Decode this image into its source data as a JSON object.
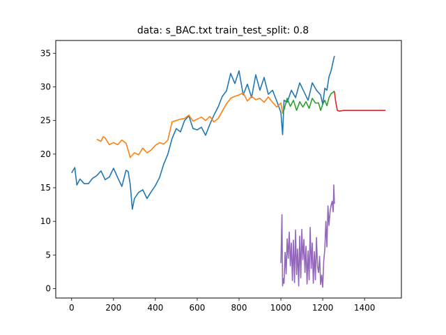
{
  "chart_data": {
    "type": "line",
    "title": "data: s_BAC.txt train_test_split: 0.8",
    "xlabel": "",
    "ylabel": "",
    "xlim": [
      -76,
      1576
    ],
    "ylim": [
      -1.4,
      36.9
    ],
    "x_ticks": [
      0,
      200,
      400,
      600,
      800,
      1000,
      1200,
      1400
    ],
    "y_ticks": [
      0,
      5,
      10,
      15,
      20,
      25,
      30,
      35
    ],
    "grid": false,
    "legend": "none",
    "series": [
      {
        "color": "#1f77b4",
        "x": [
          0,
          15,
          25,
          40,
          60,
          80,
          100,
          120,
          140,
          160,
          180,
          200,
          220,
          240,
          260,
          270,
          280,
          290,
          300,
          320,
          340,
          360,
          380,
          400,
          420,
          440,
          460,
          480,
          500,
          520,
          540,
          560,
          580,
          600,
          620,
          640,
          660,
          680,
          700,
          720,
          740,
          760,
          780,
          800,
          820,
          840,
          860,
          880,
          900,
          920,
          940,
          960,
          980,
          1000,
          1008,
          1015,
          1030,
          1050,
          1070,
          1090,
          1110,
          1130,
          1150,
          1170,
          1190,
          1200,
          1210,
          1220,
          1230,
          1240,
          1250,
          1256
        ],
        "y": [
          17.2,
          18.0,
          15.4,
          16.3,
          15.6,
          15.6,
          16.4,
          16.8,
          17.5,
          16.2,
          16.6,
          17.9,
          16.5,
          15.2,
          17.6,
          17.4,
          15.5,
          11.8,
          13.4,
          14.3,
          14.7,
          13.4,
          14.4,
          15.3,
          16.5,
          18.5,
          20.0,
          22.3,
          23.8,
          23.3,
          25.0,
          25.7,
          23.8,
          23.6,
          24.0,
          22.8,
          24.4,
          25.8,
          27.0,
          28.6,
          29.4,
          32.0,
          30.5,
          32.4,
          28.8,
          30.4,
          28.4,
          31.8,
          29.5,
          31.4,
          28.9,
          29.5,
          27.9,
          26.2,
          22.9,
          28.0,
          27.7,
          29.5,
          28.4,
          30.6,
          29.3,
          28.0,
          30.6,
          29.5,
          28.8,
          27.4,
          29.8,
          29.5,
          31.5,
          32.4,
          33.8,
          34.6
        ]
      },
      {
        "color": "#ff7f0e",
        "x": [
          120,
          140,
          150,
          160,
          180,
          200,
          220,
          240,
          260,
          270,
          280,
          300,
          320,
          340,
          360,
          380,
          400,
          420,
          440,
          460,
          480,
          500,
          520,
          540,
          560,
          580,
          600,
          620,
          640,
          660,
          680,
          700,
          720,
          740,
          760,
          780,
          800,
          820,
          840,
          860,
          880,
          900,
          920,
          940,
          960,
          980,
          1000,
          1008
        ],
        "y": [
          22.2,
          21.9,
          22.6,
          22.4,
          21.4,
          21.7,
          21.4,
          22.1,
          21.6,
          20.6,
          19.5,
          20.2,
          19.9,
          20.9,
          20.2,
          20.6,
          21.3,
          21.7,
          21.5,
          22.1,
          24.8,
          25.0,
          25.2,
          25.3,
          25.8,
          24.9,
          25.2,
          25.5,
          25.0,
          25.6,
          24.8,
          25.3,
          26.4,
          27.5,
          28.3,
          28.6,
          28.8,
          29.1,
          27.9,
          28.6,
          28.1,
          28.3,
          27.7,
          28.5,
          27.7,
          27.0,
          27.6,
          26.2
        ]
      },
      {
        "color": "#2ca02c",
        "x": [
          1008,
          1015,
          1030,
          1045,
          1060,
          1075,
          1090,
          1105,
          1120,
          1135,
          1150,
          1165,
          1180,
          1190,
          1200,
          1210,
          1220,
          1230,
          1240,
          1250,
          1256
        ],
        "y": [
          26.0,
          26.6,
          28.3,
          27.1,
          28.0,
          26.5,
          27.8,
          27.0,
          27.8,
          26.8,
          28.3,
          27.6,
          27.6,
          26.5,
          27.4,
          28.0,
          27.2,
          28.4,
          29.0,
          29.2,
          29.4
        ]
      },
      {
        "color": "#d62728",
        "x": [
          1256,
          1262,
          1270,
          1280,
          1300,
          1400,
          1500
        ],
        "y": [
          29.3,
          27.8,
          26.5,
          26.4,
          26.5,
          26.5,
          26.5
        ]
      },
      {
        "color": "#9467bd",
        "x": [
          1000,
          1005,
          1008,
          1012,
          1015,
          1020,
          1025,
          1030,
          1035,
          1040,
          1045,
          1050,
          1055,
          1060,
          1065,
          1070,
          1075,
          1080,
          1085,
          1090,
          1095,
          1100,
          1105,
          1110,
          1115,
          1120,
          1125,
          1130,
          1135,
          1140,
          1145,
          1150,
          1155,
          1160,
          1165,
          1170,
          1175,
          1180,
          1185,
          1190,
          1195,
          1200,
          1205,
          1210,
          1215,
          1220,
          1225,
          1230,
          1235,
          1240,
          1245,
          1250,
          1253,
          1256
        ],
        "y": [
          3.8,
          11.0,
          0.4,
          1.5,
          0.8,
          5.4,
          2.2,
          7.4,
          4.5,
          8.4,
          3.4,
          6.8,
          1.2,
          7.2,
          0.9,
          8.7,
          2.1,
          5.9,
          0.4,
          7.8,
          1.6,
          8.8,
          4.3,
          7.3,
          2.4,
          6.3,
          0.7,
          5.6,
          1.3,
          9.1,
          3.0,
          6.8,
          0.8,
          5.5,
          1.3,
          7.6,
          3.3,
          2.4,
          4.8,
          0.6,
          2.0,
          0.2,
          4.2,
          5.8,
          10.0,
          6.2,
          12.3,
          9.4,
          11.4,
          12.4,
          13.0,
          11.4,
          15.4,
          12.6
        ]
      }
    ]
  }
}
